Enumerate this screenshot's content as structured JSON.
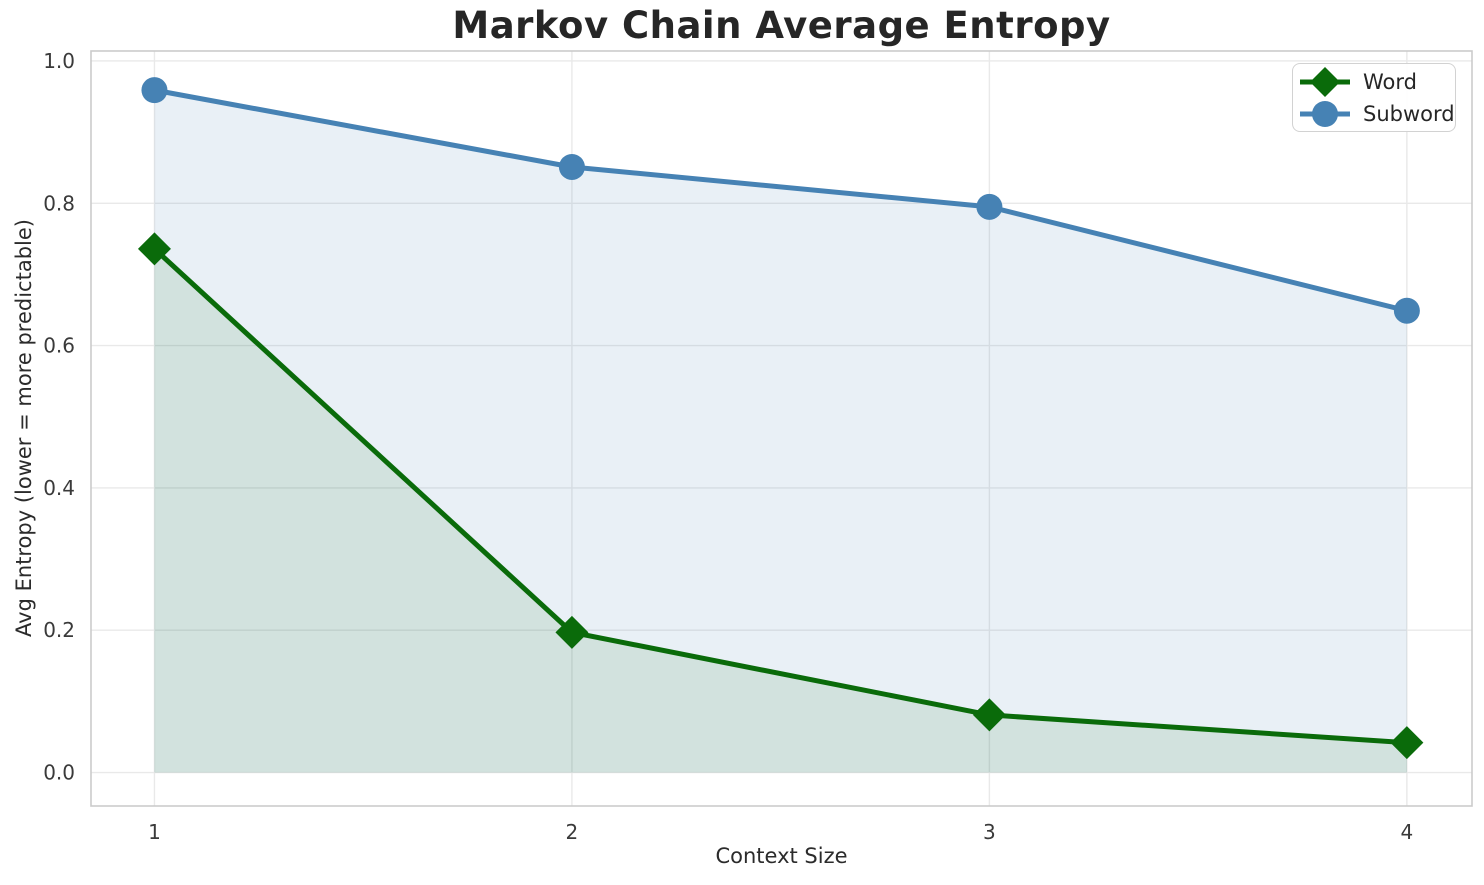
{
  "chart_data": {
    "type": "line",
    "title": "Markov Chain Average Entropy",
    "xlabel": "Context Size",
    "ylabel": "Avg Entropy (lower = more predictable)",
    "x": [
      1,
      2,
      3,
      4
    ],
    "series": [
      {
        "name": "Word",
        "marker": "diamond",
        "color": "#0a6b0a",
        "fill_alpha": 0.1,
        "values": [
          0.736,
          0.197,
          0.081,
          0.042
        ]
      },
      {
        "name": "Subword",
        "marker": "circle",
        "color": "#4682b4",
        "fill_alpha": 0.12,
        "values": [
          0.959,
          0.851,
          0.795,
          0.649
        ]
      }
    ],
    "xticks": {
      "values": [
        1,
        2,
        3,
        4
      ],
      "labels": [
        "1",
        "2",
        "3",
        "4"
      ]
    },
    "yticks": {
      "values": [
        0,
        0.2,
        0.4,
        0.6,
        0.8,
        1
      ],
      "labels": [
        "0.0",
        "0.2",
        "0.4",
        "0.6",
        "0.8",
        "1.0"
      ]
    },
    "layout": {
      "xlim": [
        0.848,
        4.156
      ],
      "ylim": [
        -0.047,
        1.014
      ],
      "grid": true,
      "legend_position": "upper right",
      "area_fill_baseline": 0
    },
    "colors": {
      "grid": "#e9e9e9",
      "spine": "#cbcbcb",
      "tick_text": "#3a3a3a"
    }
  }
}
